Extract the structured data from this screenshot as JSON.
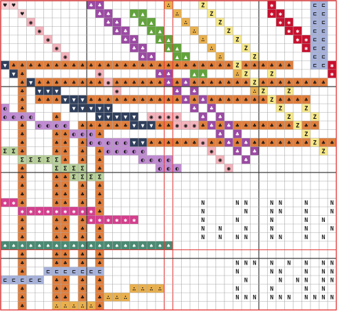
{
  "palette": {
    "background": "#ffffff",
    "grid_minor": "#a9a9a9",
    "grid_major": "#3a3a3a",
    "grid_red": "#e33a3a",
    "symbol_ink": "#1a1a1a"
  },
  "threads": {
    "pink_light": {
      "color": "#f6cfd3",
      "symbol": "♥"
    },
    "pink_dot": {
      "color": "#f3b2bb",
      "symbol": "◉"
    },
    "purple": {
      "color": "#9b4aa3",
      "symbol": "♣"
    },
    "green": {
      "color": "#62a33b",
      "symbol": "▲"
    },
    "orange": {
      "color": "#e07e3c",
      "symbol": "♣"
    },
    "tan": {
      "color": "#e9b04e",
      "symbol": "∴"
    },
    "yellow": {
      "color": "#f7e98a",
      "symbol": "Z"
    },
    "red": {
      "color": "#c8102e",
      "symbol": "✱"
    },
    "blue_light": {
      "color": "#a7b3dc",
      "symbol": "⊏"
    },
    "navy": {
      "color": "#2f3f5c",
      "symbol": "▼"
    },
    "lilac": {
      "color": "#c08bd2",
      "symbol": "◐"
    },
    "sage": {
      "color": "#b9d19b",
      "symbol": "Σ"
    },
    "magenta": {
      "color": "#d43f8d",
      "symbol": "✱"
    },
    "teal": {
      "color": "#4a8a73",
      "symbol": "♠"
    },
    "white_n": {
      "color": "#ffffff",
      "symbol": "N"
    }
  }
}
